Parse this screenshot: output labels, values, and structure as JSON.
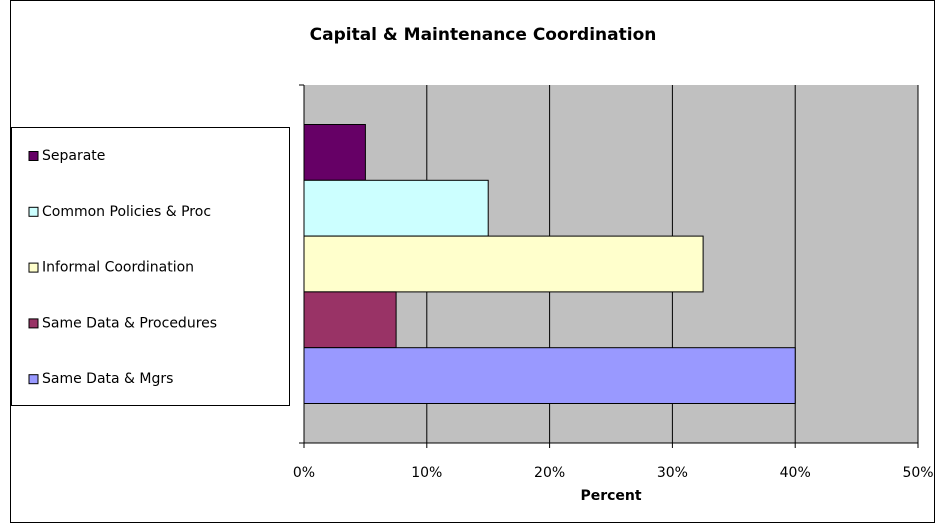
{
  "chart_data": {
    "type": "bar",
    "orientation": "horizontal",
    "title": "Capital & Maintenance Coordination",
    "xlabel": "Percent",
    "series": [
      {
        "name": "Separate",
        "color": "#660066",
        "values": [
          5
        ]
      },
      {
        "name": "Common Policies & Proc",
        "color": "#ccffff",
        "values": [
          15
        ]
      },
      {
        "name": "Informal Coordination",
        "color": "#ffffcc",
        "values": [
          32.5
        ]
      },
      {
        "name": "Same Data & Procedures",
        "color": "#993366",
        "values": [
          7.5
        ]
      },
      {
        "name": "Same Data & Mgrs",
        "color": "#9999ff",
        "values": [
          40
        ]
      }
    ],
    "xlim": [
      0,
      50
    ],
    "xticks": [
      {
        "value": 0,
        "label": "0%"
      },
      {
        "value": 10,
        "label": "10%"
      },
      {
        "value": 20,
        "label": "20%"
      },
      {
        "value": 30,
        "label": "30%"
      },
      {
        "value": 40,
        "label": "40%"
      },
      {
        "value": 50,
        "label": "50%"
      }
    ],
    "grid": true,
    "legend": "left"
  }
}
